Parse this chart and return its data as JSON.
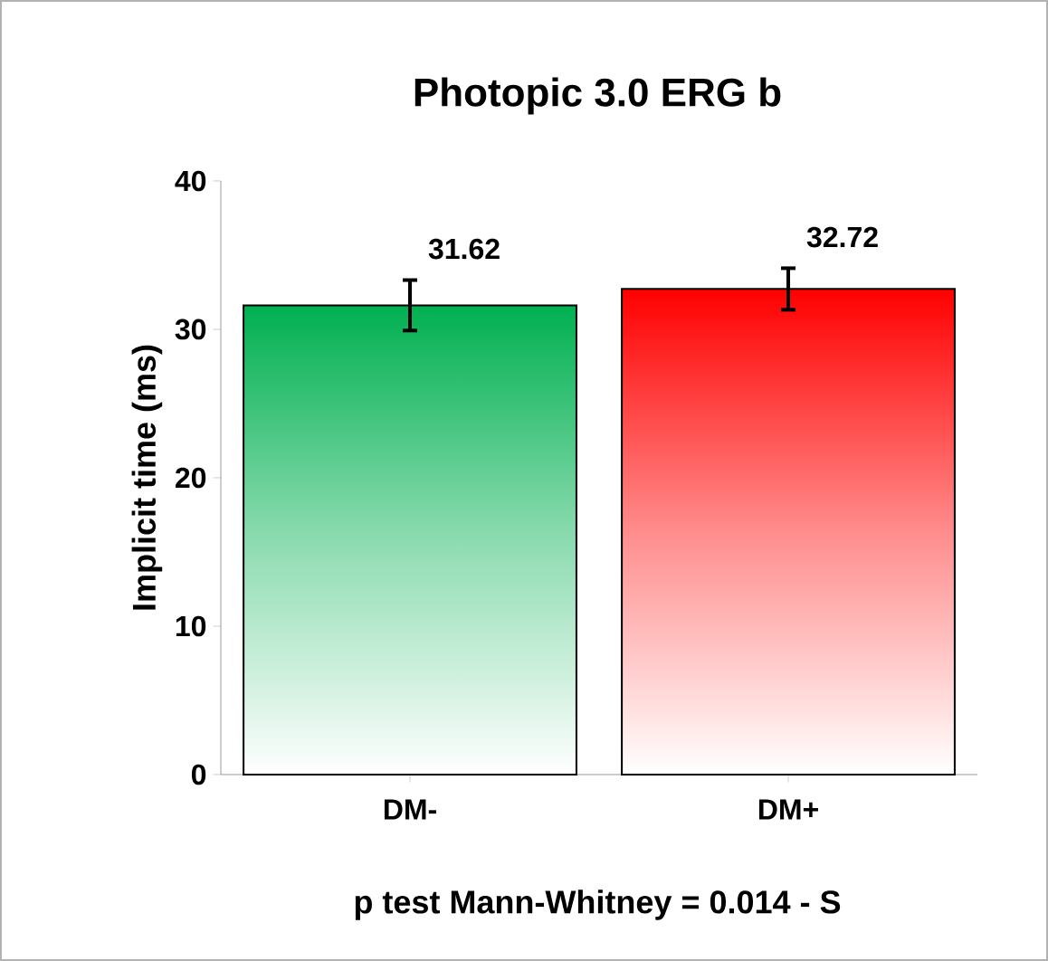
{
  "chart_data": {
    "type": "bar",
    "title": "Photopic 3.0 ERG b",
    "ylabel": "Implicit time (ms)",
    "categories": [
      "DM-",
      "DM+"
    ],
    "values": [
      31.62,
      32.72
    ],
    "colors": [
      "#00b050",
      "#ff0000"
    ],
    "errors": [
      1.7,
      1.4
    ],
    "data_labels": true,
    "ylim": [
      0,
      40
    ],
    "yticks": [
      0,
      10,
      20,
      30,
      40
    ],
    "annotations": [
      "p test Mann-Whitney = 0.014 - S"
    ]
  }
}
